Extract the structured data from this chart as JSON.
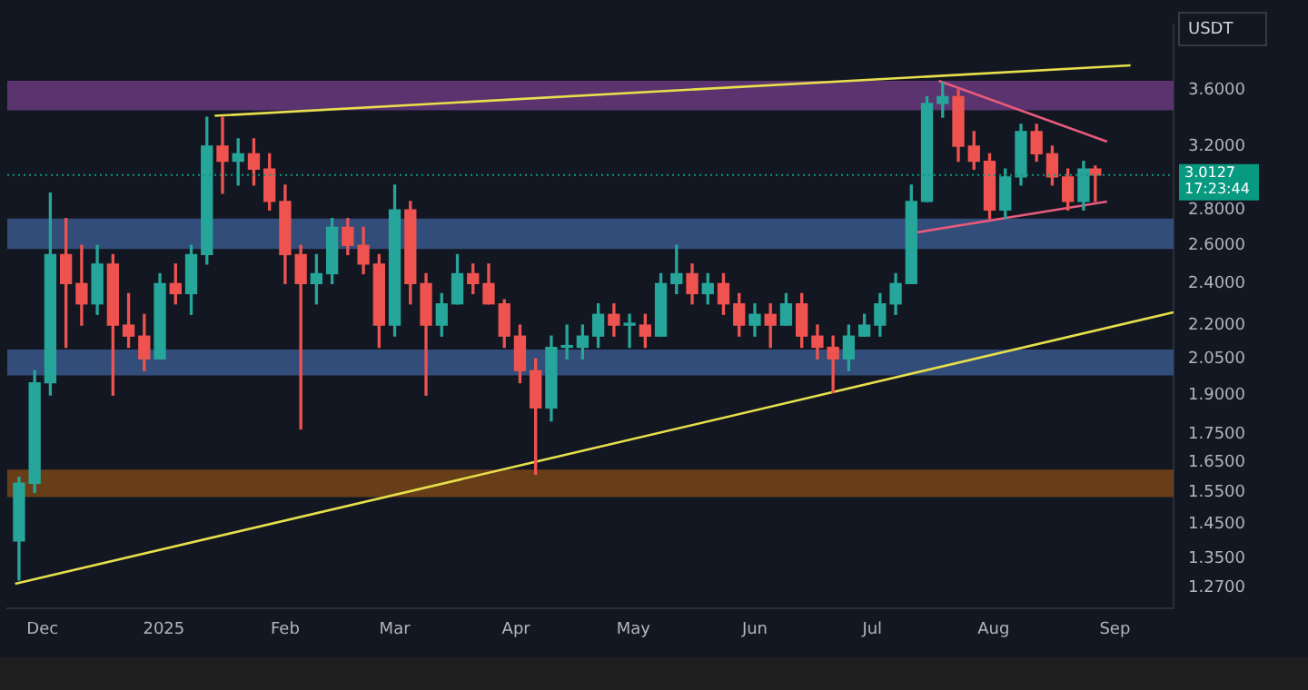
{
  "chart_data": {
    "type": "candlestick",
    "log": true,
    "x": [
      "2024-11-25",
      "2024-11-29",
      "2024-12-03",
      "2024-12-07",
      "2024-12-11",
      "2024-12-15",
      "2024-12-19",
      "2024-12-23",
      "2024-12-27",
      "2024-12-31",
      "2025-01-04",
      "2025-01-08",
      "2025-01-12",
      "2025-01-16",
      "2025-01-20",
      "2025-01-24",
      "2025-01-28",
      "2025-02-01",
      "2025-02-05",
      "2025-02-09",
      "2025-02-13",
      "2025-02-17",
      "2025-02-21",
      "2025-02-25",
      "2025-03-01",
      "2025-03-05",
      "2025-03-09",
      "2025-03-13",
      "2025-03-17",
      "2025-03-21",
      "2025-03-25",
      "2025-03-29",
      "2025-04-02",
      "2025-04-06",
      "2025-04-10",
      "2025-04-14",
      "2025-04-18",
      "2025-04-22",
      "2025-04-26",
      "2025-04-30",
      "2025-05-04",
      "2025-05-08",
      "2025-05-12",
      "2025-05-16",
      "2025-05-20",
      "2025-05-24",
      "2025-05-28",
      "2025-06-01",
      "2025-06-05",
      "2025-06-09",
      "2025-06-13",
      "2025-06-17",
      "2025-06-21",
      "2025-06-25",
      "2025-06-29",
      "2025-07-03",
      "2025-07-07",
      "2025-07-11",
      "2025-07-15",
      "2025-07-19",
      "2025-07-23",
      "2025-07-27",
      "2025-07-31",
      "2025-08-04",
      "2025-08-08",
      "2025-08-12",
      "2025-08-16",
      "2025-08-20",
      "2025-08-24",
      "2025-08-27"
    ],
    "ohlc": [
      [
        1.4,
        1.6,
        1.29,
        1.58
      ],
      [
        1.58,
        2.0,
        1.55,
        1.95
      ],
      [
        1.95,
        2.9,
        1.9,
        2.55
      ],
      [
        2.55,
        2.75,
        2.1,
        2.4
      ],
      [
        2.4,
        2.6,
        2.2,
        2.3
      ],
      [
        2.3,
        2.6,
        2.25,
        2.5
      ],
      [
        2.5,
        2.55,
        1.9,
        2.2
      ],
      [
        2.2,
        2.35,
        2.1,
        2.15
      ],
      [
        2.15,
        2.25,
        2.0,
        2.05
      ],
      [
        2.05,
        2.45,
        2.05,
        2.4
      ],
      [
        2.4,
        2.5,
        2.3,
        2.35
      ],
      [
        2.35,
        2.6,
        2.25,
        2.55
      ],
      [
        2.55,
        3.4,
        2.5,
        3.2
      ],
      [
        3.2,
        3.4,
        2.9,
        3.1
      ],
      [
        3.1,
        3.25,
        2.95,
        3.15
      ],
      [
        3.15,
        3.25,
        2.95,
        3.05
      ],
      [
        3.05,
        3.15,
        2.8,
        2.85
      ],
      [
        2.85,
        2.95,
        2.4,
        2.55
      ],
      [
        2.55,
        2.6,
        1.77,
        2.4
      ],
      [
        2.4,
        2.55,
        2.3,
        2.45
      ],
      [
        2.45,
        2.75,
        2.4,
        2.7
      ],
      [
        2.7,
        2.75,
        2.55,
        2.6
      ],
      [
        2.6,
        2.7,
        2.45,
        2.5
      ],
      [
        2.5,
        2.55,
        2.1,
        2.2
      ],
      [
        2.2,
        2.95,
        2.15,
        2.8
      ],
      [
        2.8,
        2.85,
        2.3,
        2.4
      ],
      [
        2.4,
        2.45,
        1.9,
        2.2
      ],
      [
        2.2,
        2.35,
        2.15,
        2.3
      ],
      [
        2.3,
        2.55,
        2.3,
        2.45
      ],
      [
        2.45,
        2.5,
        2.35,
        2.4
      ],
      [
        2.4,
        2.5,
        2.3,
        2.3
      ],
      [
        2.3,
        2.32,
        2.1,
        2.15
      ],
      [
        2.15,
        2.2,
        1.95,
        2.0
      ],
      [
        2.0,
        2.05,
        1.61,
        1.85
      ],
      [
        1.85,
        2.15,
        1.8,
        2.1
      ],
      [
        2.1,
        2.2,
        2.05,
        2.1
      ],
      [
        2.1,
        2.2,
        2.05,
        2.15
      ],
      [
        2.15,
        2.3,
        2.1,
        2.25
      ],
      [
        2.25,
        2.3,
        2.15,
        2.2
      ],
      [
        2.2,
        2.25,
        2.1,
        2.2
      ],
      [
        2.2,
        2.25,
        2.1,
        2.15
      ],
      [
        2.15,
        2.45,
        2.15,
        2.4
      ],
      [
        2.4,
        2.6,
        2.35,
        2.45
      ],
      [
        2.45,
        2.5,
        2.3,
        2.35
      ],
      [
        2.35,
        2.45,
        2.3,
        2.4
      ],
      [
        2.4,
        2.45,
        2.25,
        2.3
      ],
      [
        2.3,
        2.35,
        2.15,
        2.2
      ],
      [
        2.2,
        2.3,
        2.15,
        2.25
      ],
      [
        2.25,
        2.3,
        2.1,
        2.2
      ],
      [
        2.2,
        2.35,
        2.2,
        2.3
      ],
      [
        2.3,
        2.35,
        2.1,
        2.15
      ],
      [
        2.15,
        2.2,
        2.05,
        2.1
      ],
      [
        2.1,
        2.15,
        1.91,
        2.05
      ],
      [
        2.05,
        2.2,
        2.0,
        2.15
      ],
      [
        2.15,
        2.25,
        2.15,
        2.2
      ],
      [
        2.2,
        2.35,
        2.15,
        2.3
      ],
      [
        2.3,
        2.45,
        2.25,
        2.4
      ],
      [
        2.4,
        2.95,
        2.4,
        2.85
      ],
      [
        2.85,
        3.55,
        2.85,
        3.5
      ],
      [
        3.5,
        3.66,
        3.4,
        3.55
      ],
      [
        3.55,
        3.6,
        3.1,
        3.2
      ],
      [
        3.2,
        3.3,
        3.05,
        3.1
      ],
      [
        3.1,
        3.15,
        2.75,
        2.8
      ],
      [
        2.8,
        3.05,
        2.75,
        3.0
      ],
      [
        3.0,
        3.35,
        2.95,
        3.3
      ],
      [
        3.3,
        3.35,
        3.1,
        3.15
      ],
      [
        3.15,
        3.2,
        2.95,
        3.0
      ],
      [
        3.0,
        3.05,
        2.8,
        2.85
      ],
      [
        2.85,
        3.1,
        2.8,
        3.05
      ],
      [
        3.05,
        3.07,
        2.85,
        3.0127
      ]
    ],
    "series": [
      {
        "type": "line",
        "color": "#e8df4c",
        "x": [
          "2025-01-14",
          "2025-09-05"
        ],
        "values": [
          3.41,
          3.79
        ]
      },
      {
        "type": "line",
        "color": "#e8df4c",
        "x": [
          "2024-11-24",
          "2025-09-16"
        ],
        "values": [
          1.28,
          2.26
        ]
      },
      {
        "type": "line",
        "color": "#e85a7c",
        "x": [
          "2025-07-18",
          "2025-08-30"
        ],
        "values": [
          3.67,
          3.23
        ]
      },
      {
        "type": "line",
        "color": "#e85a7c",
        "x": [
          "2025-07-12",
          "2025-08-30"
        ],
        "values": [
          2.67,
          2.85
        ]
      }
    ],
    "bands": [
      {
        "axis": "y",
        "from": 3.45,
        "to": 3.67,
        "color": "#5e3574"
      },
      {
        "axis": "y",
        "from": 2.58,
        "to": 2.75,
        "color": "#34507e"
      },
      {
        "axis": "y",
        "from": 1.98,
        "to": 2.09,
        "color": "#34507e"
      },
      {
        "axis": "y",
        "from": 1.535,
        "to": 1.626,
        "color": "#6b4018"
      }
    ],
    "ref_lines": [
      {
        "axis": "y",
        "value": 3.0127,
        "label": "3.0127\n17:23:44",
        "color": "#089981"
      }
    ],
    "annotations": [
      "USDT"
    ],
    "xlim": [
      "2024-11-22",
      "2025-09-16"
    ],
    "xticks": [
      {
        "value": "2024-12-01",
        "label": "Dec"
      },
      {
        "value": "2025-01-01",
        "label": "2025"
      },
      {
        "value": "2025-02-01",
        "label": "Feb"
      },
      {
        "value": "2025-03-01",
        "label": "Mar"
      },
      {
        "value": "2025-04-01",
        "label": "Apr"
      },
      {
        "value": "2025-05-01",
        "label": "May"
      },
      {
        "value": "2025-06-01",
        "label": "Jun"
      },
      {
        "value": "2025-07-01",
        "label": "Jul"
      },
      {
        "value": "2025-08-01",
        "label": "Aug"
      },
      {
        "value": "2025-09-01",
        "label": "Sep"
      }
    ],
    "ylim": [
      1.215,
      4.13
    ],
    "yticks": [
      {
        "value": 1.27,
        "label": "1.2700"
      },
      {
        "value": 1.35,
        "label": "1.3500"
      },
      {
        "value": 1.45,
        "label": "1.4500"
      },
      {
        "value": 1.55,
        "label": "1.5500"
      },
      {
        "value": 1.65,
        "label": "1.6500"
      },
      {
        "value": 1.75,
        "label": "1.7500"
      },
      {
        "value": 1.9,
        "label": "1.9000"
      },
      {
        "value": 2.05,
        "label": "2.0500"
      },
      {
        "value": 2.2,
        "label": "2.2000"
      },
      {
        "value": 2.4,
        "label": "2.4000"
      },
      {
        "value": 2.6,
        "label": "2.6000"
      },
      {
        "value": 2.8,
        "label": "2.8000"
      },
      {
        "value": 3.2,
        "label": "3.2000"
      },
      {
        "value": 3.6,
        "label": "3.6000"
      }
    ]
  }
}
